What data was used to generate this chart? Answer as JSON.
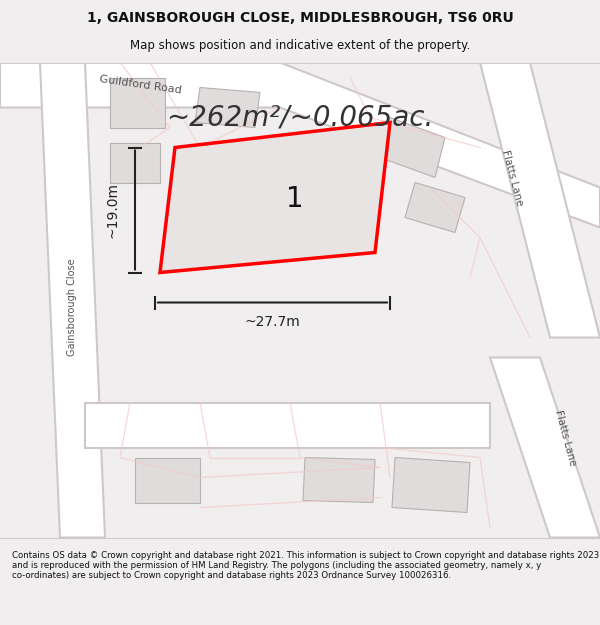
{
  "title_line1": "1, GAINSBOROUGH CLOSE, MIDDLESBROUGH, TS6 0RU",
  "title_line2": "Map shows position and indicative extent of the property.",
  "area_text": "~262m²/~0.065ac.",
  "dim_height": "~19.0m",
  "dim_width": "~27.7m",
  "plot_label": "1",
  "footer_text": "Contains OS data © Crown copyright and database right 2021. This information is subject to Crown copyright and database rights 2023 and is reproduced with the permission of HM Land Registry. The polygons (including the associated geometry, namely x, y co-ordinates) are subject to Crown copyright and database rights 2023 Ordnance Survey 100026316.",
  "bg_color": "#f0eeee",
  "map_bg": "#f5f3f3",
  "road_color": "#ffffff",
  "road_outline": "#d0c8c8",
  "building_fill": "#e0dcdc",
  "building_outline": "#b8b0b0",
  "plot_fill": "#e8e4e4",
  "plot_outline": "#ff0000",
  "road_light_color": "#f5c8c8",
  "dim_color": "#222222",
  "text_color": "#111111",
  "title_bg": "#f5f3f3"
}
